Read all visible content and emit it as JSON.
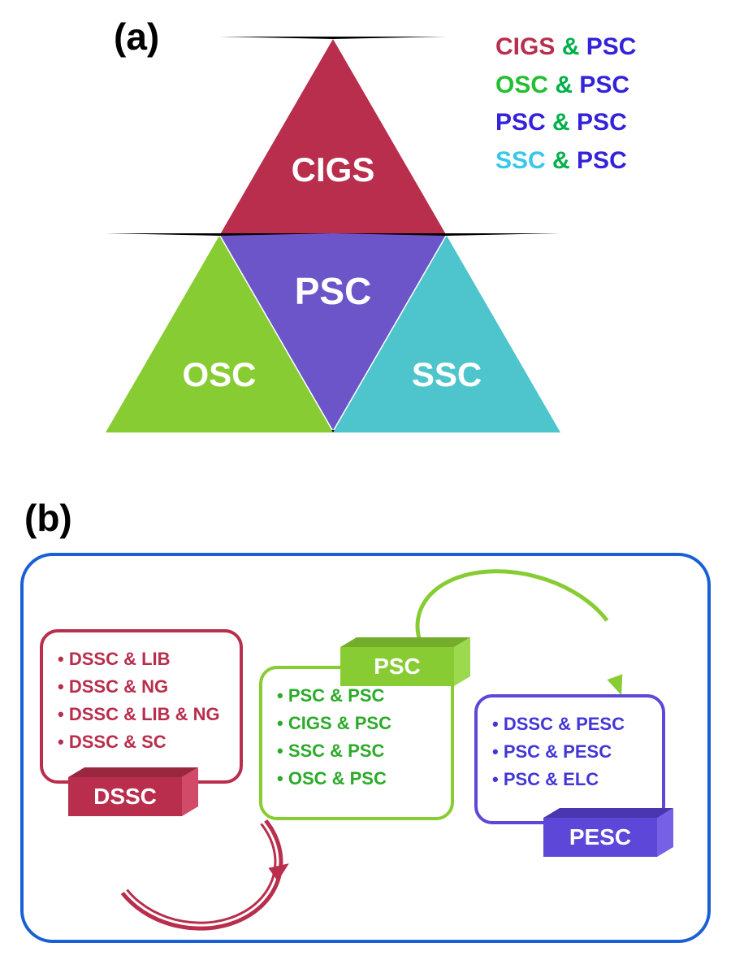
{
  "panel_a": {
    "label": "(a)",
    "triangles": {
      "top": {
        "text": "CIGS",
        "color": "#b82e4c",
        "text_color": "#ffffff"
      },
      "center": {
        "text": "PSC",
        "color": "#6b55c9",
        "text_color": "#ffffff"
      },
      "left": {
        "text": "OSC",
        "color": "#88cc33",
        "text_color": "#ffffff"
      },
      "right": {
        "text": "SSC",
        "color": "#4ec5cc",
        "text_color": "#ffffff"
      }
    },
    "legend": {
      "amp_color": "#00b04a",
      "psc_color": "#3322d9",
      "rows": [
        {
          "left": "CIGS",
          "left_color": "#b82e4c",
          "right": "PSC"
        },
        {
          "left": "OSC",
          "left_color": "#22c030",
          "right": "PSC"
        },
        {
          "left": "PSC",
          "left_color": "#3322d9",
          "right": "PSC"
        },
        {
          "left": "SSC",
          "left_color": "#35c8e8",
          "right": "PSC"
        }
      ]
    }
  },
  "panel_b": {
    "label": "(b)",
    "frame_color": "#1960d6",
    "cards": [
      {
        "title": "DSSC",
        "border_color": "#b82e4c",
        "text_color": "#b82e4c",
        "tab_front": "#b82e4c",
        "tab_top": "#9a2740",
        "tab_side": "#d14a67",
        "items": [
          "DSSC & LIB",
          "DSSC & NG",
          "DSSC & LIB & NG",
          "DSSC & SC"
        ]
      },
      {
        "title": "PSC",
        "border_color": "#88cc33",
        "text_color": "#2bab29",
        "tab_front": "#88cc33",
        "tab_top": "#73ad2b",
        "tab_side": "#9cd94f",
        "items": [
          "PSC & PSC",
          "CIGS & PSC",
          "SSC & PSC",
          "OSC & PSC"
        ]
      },
      {
        "title": "PESC",
        "border_color": "#5d47d9",
        "text_color": "#4336d6",
        "tab_front": "#5d47d9",
        "tab_top": "#4a37b0",
        "tab_side": "#7560e6",
        "items": [
          "DSSC & PESC",
          "PSC & PESC",
          "PSC & ELC"
        ]
      }
    ]
  },
  "geometry": {
    "tri_half": 140,
    "tri_height": 242
  }
}
